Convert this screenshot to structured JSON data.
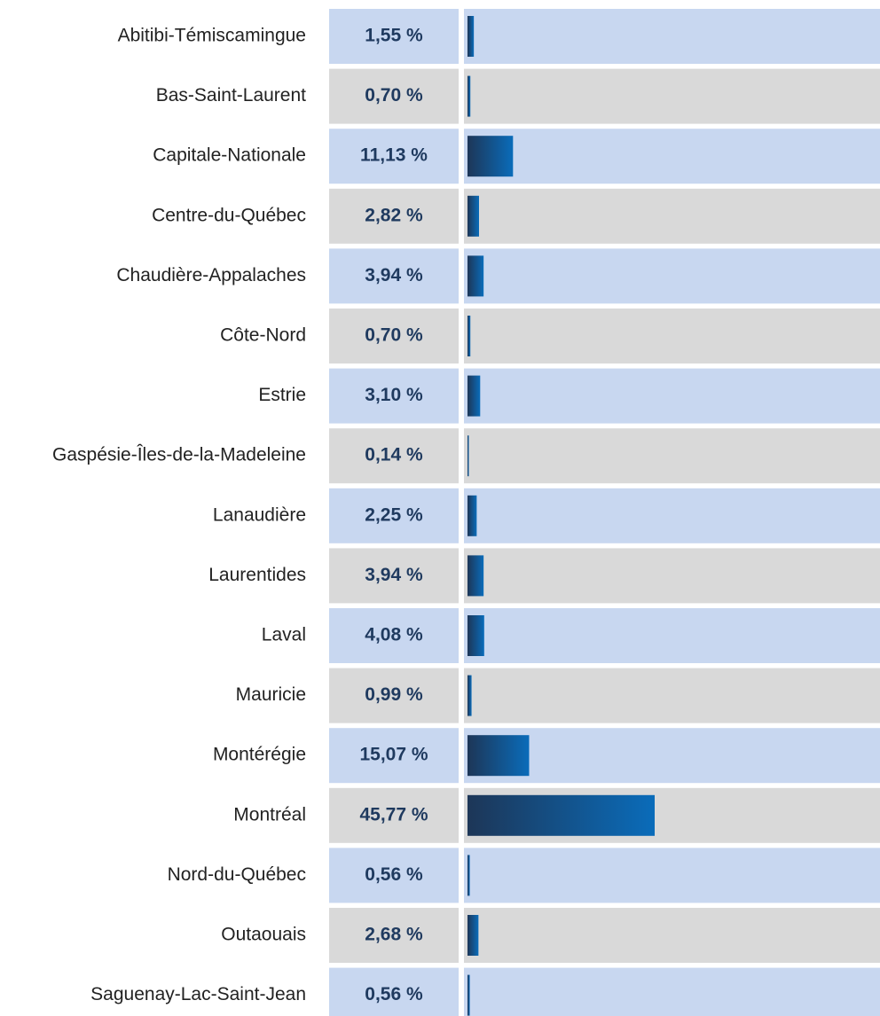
{
  "chart_data": {
    "type": "bar",
    "categories": [
      "Abitibi-Témiscamingue",
      "Bas-Saint-Laurent",
      "Capitale-Nationale",
      "Centre-du-Québec",
      "Chaudière-Appalaches",
      "Côte-Nord",
      "Estrie",
      "Gaspésie-Îles-de-la-Madeleine",
      "Lanaudière",
      "Laurentides",
      "Laval",
      "Mauricie",
      "Montérégie",
      "Montréal",
      "Nord-du-Québec",
      "Outaouais",
      "Saguenay-Lac-Saint-Jean"
    ],
    "values": [
      1.55,
      0.7,
      11.13,
      2.82,
      3.94,
      0.7,
      3.1,
      0.14,
      2.25,
      3.94,
      4.08,
      0.99,
      15.07,
      45.77,
      0.56,
      2.68,
      0.56
    ],
    "value_labels": [
      "1,55 %",
      "0,70 %",
      "11,13 %",
      "2,82 %",
      "3,94 %",
      "0,70 %",
      "3,10 %",
      "0,14 %",
      "2,25 %",
      "3,94 %",
      "4,08 %",
      "0,99 %",
      "15,07 %",
      "45,77 %",
      "0,56 %",
      "2,68 %",
      "0,56 %"
    ],
    "xlim": [
      0,
      100
    ],
    "row_colors": [
      "#c8d7f0",
      "#d9d9d9"
    ],
    "bar_gradient": [
      "#1d3657",
      "#0a6cba"
    ]
  }
}
